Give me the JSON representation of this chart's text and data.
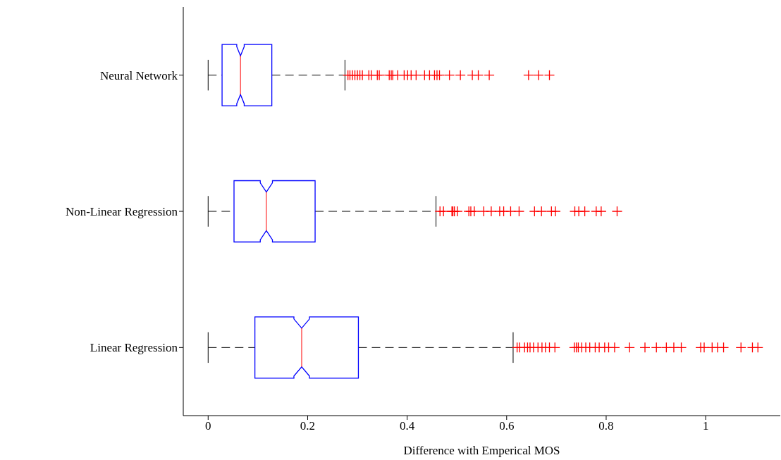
{
  "chart_data": {
    "type": "box",
    "xlabel": "Difference with Emperical MOS",
    "orientation": "horizontal",
    "categories": [
      "Neural Network",
      "Non-Linear Regression",
      "Linear Regression"
    ],
    "xlim": [
      -0.05,
      1.15
    ],
    "xticks": [
      0,
      0.2,
      0.4,
      0.6,
      0.8,
      1
    ],
    "series": [
      {
        "color": "#0000ff",
        "boxes": [
          {
            "low": 0,
            "q1": 0.028,
            "median": 0.065,
            "q3": 0.128,
            "high": 0.275,
            "outliers": [
              0.281,
              0.285,
              0.29,
              0.295,
              0.3,
              0.305,
              0.31,
              0.323,
              0.328,
              0.34,
              0.344,
              0.364,
              0.368,
              0.371,
              0.381,
              0.394,
              0.401,
              0.408,
              0.418,
              0.435,
              0.445,
              0.455,
              0.46,
              0.465,
              0.485,
              0.507,
              0.531,
              0.543,
              0.565,
              0.644,
              0.664,
              0.686
            ]
          },
          {
            "low": 0,
            "q1": 0.052,
            "median": 0.117,
            "q3": 0.215,
            "high": 0.458,
            "outliers": [
              0.466,
              0.473,
              0.49,
              0.492,
              0.495,
              0.501,
              0.524,
              0.528,
              0.535,
              0.554,
              0.569,
              0.586,
              0.594,
              0.608,
              0.625,
              0.656,
              0.67,
              0.69,
              0.698,
              0.737,
              0.745,
              0.757,
              0.78,
              0.79,
              0.822
            ]
          },
          {
            "low": 0,
            "q1": 0.094,
            "median": 0.188,
            "q3": 0.302,
            "high": 0.613,
            "outliers": [
              0.621,
              0.626,
              0.636,
              0.642,
              0.647,
              0.654,
              0.663,
              0.671,
              0.678,
              0.686,
              0.697,
              0.736,
              0.74,
              0.744,
              0.751,
              0.759,
              0.767,
              0.778,
              0.786,
              0.797,
              0.805,
              0.817,
              0.847,
              0.878,
              0.901,
              0.921,
              0.936,
              0.951,
              0.99,
              0.997,
              1.013,
              1.024,
              1.036,
              1.071,
              1.094,
              1.105
            ]
          }
        ]
      }
    ]
  }
}
